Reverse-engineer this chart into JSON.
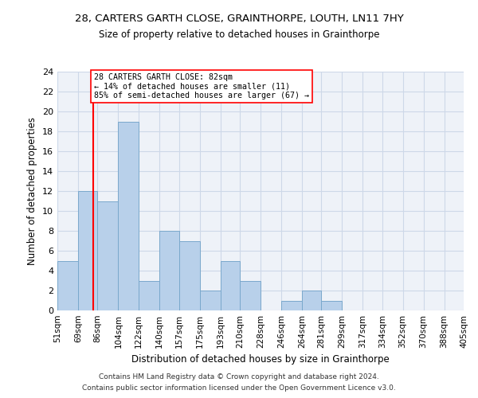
{
  "title1": "28, CARTERS GARTH CLOSE, GRAINTHORPE, LOUTH, LN11 7HY",
  "title2": "Size of property relative to detached houses in Grainthorpe",
  "xlabel": "Distribution of detached houses by size in Grainthorpe",
  "ylabel": "Number of detached properties",
  "bin_labels": [
    "51sqm",
    "69sqm",
    "86sqm",
    "104sqm",
    "122sqm",
    "140sqm",
    "157sqm",
    "175sqm",
    "193sqm",
    "210sqm",
    "228sqm",
    "246sqm",
    "264sqm",
    "281sqm",
    "299sqm",
    "317sqm",
    "334sqm",
    "352sqm",
    "370sqm",
    "388sqm",
    "405sqm"
  ],
  "bar_heights": [
    5,
    12,
    11,
    19,
    3,
    8,
    7,
    2,
    5,
    3,
    0,
    1,
    2,
    1,
    0,
    0,
    0,
    0,
    0,
    0
  ],
  "bar_color": "#b8d0ea",
  "bar_edge_color": "#7aa8cc",
  "property_line_x": 82,
  "ylim": [
    0,
    24
  ],
  "yticks": [
    0,
    2,
    4,
    6,
    8,
    10,
    12,
    14,
    16,
    18,
    20,
    22,
    24
  ],
  "annotation_lines": [
    "28 CARTERS GARTH CLOSE: 82sqm",
    "← 14% of detached houses are smaller (11)",
    "85% of semi-detached houses are larger (67) →"
  ],
  "footer1": "Contains HM Land Registry data © Crown copyright and database right 2024.",
  "footer2": "Contains public sector information licensed under the Open Government Licence v3.0.",
  "bin_edges": [
    51,
    69,
    86,
    104,
    122,
    140,
    157,
    175,
    193,
    210,
    228,
    246,
    264,
    281,
    299,
    317,
    334,
    352,
    370,
    388,
    405
  ]
}
